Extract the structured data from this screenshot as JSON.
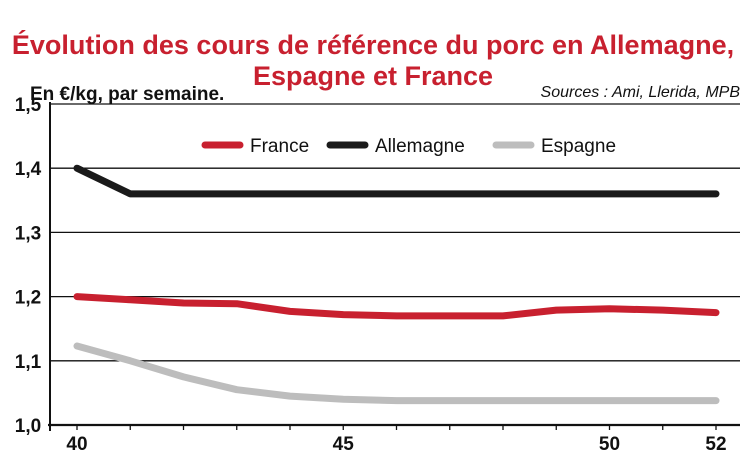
{
  "chart_data": {
    "type": "line",
    "title_line1": "Évolution des cours de référence du porc en Allemagne,",
    "title_line2": "Espagne et France",
    "unit_label": "En €/kg, par semaine.",
    "source": "Sources : Ami, Llerida, MPB",
    "x": [
      40,
      41,
      42,
      43,
      44,
      45,
      46,
      47,
      48,
      49,
      50,
      51,
      52
    ],
    "x_ticks": [
      40,
      45,
      50,
      52
    ],
    "x_tick_labels": [
      "40",
      "45",
      "50",
      "52"
    ],
    "xlim": [
      40,
      52
    ],
    "ylim": [
      1.0,
      1.5
    ],
    "y_ticks": [
      1.0,
      1.1,
      1.2,
      1.3,
      1.4,
      1.5
    ],
    "y_tick_labels": [
      "1,0",
      "1,1",
      "1,2",
      "1,3",
      "1,4",
      "1,5"
    ],
    "grid": "horizontal",
    "legend_position": "top",
    "series": [
      {
        "name": "France",
        "color": "#c8202f",
        "values": [
          1.2,
          1.195,
          1.19,
          1.189,
          1.177,
          1.172,
          1.17,
          1.17,
          1.17,
          1.179,
          1.181,
          1.179,
          1.175
        ]
      },
      {
        "name": "Allemagne",
        "color": "#1a1a1a",
        "values": [
          1.4,
          1.36,
          1.36,
          1.36,
          1.36,
          1.36,
          1.36,
          1.36,
          1.36,
          1.36,
          1.36,
          1.36,
          1.36
        ]
      },
      {
        "name": "Espagne",
        "color": "#bdbdbd",
        "values": [
          1.123,
          1.1,
          1.075,
          1.055,
          1.045,
          1.04,
          1.038,
          1.038,
          1.038,
          1.038,
          1.038,
          1.038,
          1.038
        ]
      }
    ]
  }
}
